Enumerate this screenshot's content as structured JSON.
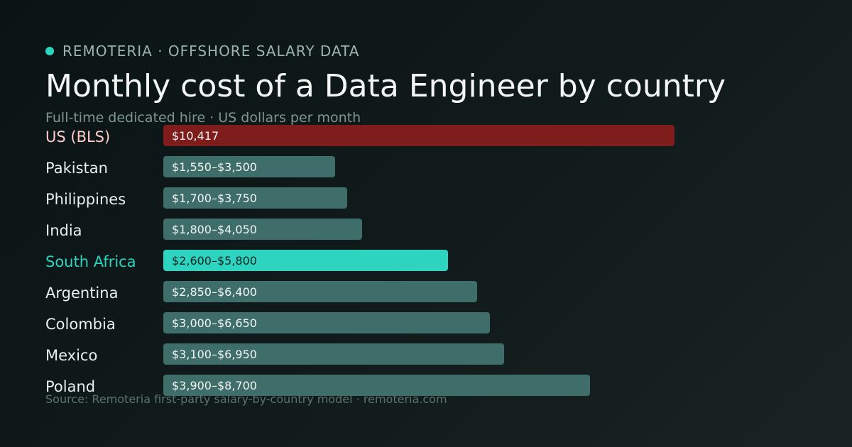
{
  "header": {
    "brand": "REMOTERIA · OFFSHORE SALARY DATA",
    "title": "Monthly cost of a Data Engineer by country",
    "subtitle": "Full-time dedicated hire · US dollars per month"
  },
  "footer": {
    "source": "Source: Remoteria first-party salary-by-country model · remoteria.com"
  },
  "colors": {
    "accent": "#2dd4bf",
    "us_bar": "#7f1d1d",
    "us_label": "#fecaca",
    "default_bar": "#3f6e6a",
    "label": "#e9efee",
    "bar_text": "#f1f5f4"
  },
  "chart_data": {
    "type": "bar",
    "orientation": "horizontal",
    "title": "Monthly cost of a Data Engineer by country",
    "subtitle": "Full-time dedicated hire · US dollars per month",
    "unit": "USD per month",
    "xlim": [
      0,
      10417
    ],
    "grid": false,
    "categories": [
      "US (BLS)",
      "Pakistan",
      "Philippines",
      "India",
      "South Africa",
      "Argentina",
      "Colombia",
      "Mexico",
      "Poland"
    ],
    "series": [
      {
        "values": [
          10417,
          3500,
          3750,
          4050,
          5800,
          6400,
          6650,
          6950,
          8700
        ],
        "range_low": [
          null,
          1550,
          1700,
          1800,
          2600,
          2850,
          3000,
          3100,
          3900
        ],
        "labels": [
          "$10,417",
          "$1,550–$3,500",
          "$1,700–$3,750",
          "$1,800–$4,050",
          "$2,600–$5,800",
          "$2,850–$6,400",
          "$3,000–$6,650",
          "$3,100–$6,950",
          "$3,900–$8,700"
        ]
      }
    ],
    "highlight": {
      "benchmark": "US (BLS)",
      "featured": "South Africa"
    }
  }
}
